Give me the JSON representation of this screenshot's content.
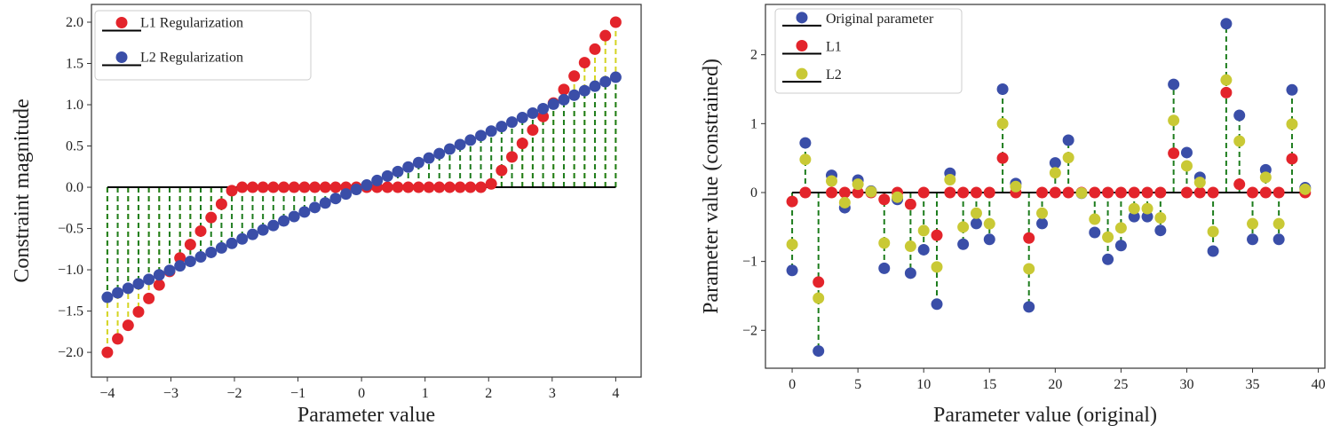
{
  "chart_data": [
    {
      "type": "scatter",
      "xlabel": "Parameter value",
      "ylabel": "Constraint magnitude",
      "xlim": [
        -4.25,
        4.4
      ],
      "ylim": [
        -2.3,
        2.215
      ],
      "xticks": [
        "-4",
        "-3",
        "-2",
        "-1",
        "0",
        "1",
        "2",
        "3",
        "4"
      ],
      "xtick_values": [
        -4,
        -3,
        -2,
        -1,
        0,
        1,
        2,
        3,
        4
      ],
      "yticks": [
        "-2.0",
        "-1.5",
        "-1.0",
        "-0.5",
        "0.0",
        "0.5",
        "1.0",
        "1.5",
        "2.0"
      ],
      "ytick_values": [
        -2,
        -1.5,
        -1,
        -0.5,
        0,
        0.5,
        1,
        1.5,
        2
      ],
      "legend_position": "top-left",
      "grid": false,
      "x": [
        -4.0,
        -3.837,
        -3.673,
        -3.51,
        -3.347,
        -3.184,
        -3.02,
        -2.857,
        -2.694,
        -2.531,
        -2.367,
        -2.204,
        -2.041,
        -1.878,
        -1.714,
        -1.551,
        -1.388,
        -1.224,
        -1.061,
        -0.898,
        -0.735,
        -0.571,
        -0.408,
        -0.245,
        -0.082,
        0.082,
        0.245,
        0.408,
        0.571,
        0.735,
        0.898,
        1.061,
        1.224,
        1.388,
        1.551,
        1.714,
        1.878,
        2.041,
        2.204,
        2.367,
        2.531,
        2.694,
        2.857,
        3.02,
        3.184,
        3.347,
        3.51,
        3.673,
        3.837,
        4.0
      ],
      "series": [
        {
          "name": "L1 Regularization",
          "color": "#e3242b",
          "stem_color": "#d4d422",
          "values": [
            -2.0,
            -1.837,
            -1.673,
            -1.51,
            -1.347,
            -1.184,
            -1.02,
            -0.857,
            -0.694,
            -0.531,
            -0.367,
            -0.204,
            -0.041,
            0,
            0,
            0,
            0,
            0,
            0,
            0,
            0,
            0,
            0,
            0,
            0,
            0,
            0,
            0,
            0,
            0,
            0,
            0,
            0,
            0,
            0,
            0,
            0,
            0.041,
            0.204,
            0.367,
            0.531,
            0.694,
            0.857,
            1.02,
            1.184,
            1.347,
            1.51,
            1.673,
            1.837,
            2.0
          ]
        },
        {
          "name": "L2 Regularization",
          "color": "#3a4ea8",
          "stem_color": "#1e7d1e",
          "values": [
            -1.333,
            -1.279,
            -1.224,
            -1.17,
            -1.116,
            -1.061,
            -1.007,
            -0.952,
            -0.898,
            -0.844,
            -0.789,
            -0.735,
            -0.68,
            -0.626,
            -0.571,
            -0.517,
            -0.463,
            -0.408,
            -0.354,
            -0.299,
            -0.245,
            -0.19,
            -0.136,
            -0.082,
            -0.027,
            0.027,
            0.082,
            0.136,
            0.19,
            0.245,
            0.299,
            0.354,
            0.408,
            0.463,
            0.517,
            0.571,
            0.626,
            0.68,
            0.735,
            0.789,
            0.844,
            0.898,
            0.952,
            1.007,
            1.061,
            1.116,
            1.17,
            1.224,
            1.279,
            1.333
          ]
        }
      ],
      "baseline_color": "#000000"
    },
    {
      "type": "scatter",
      "xlabel": "Parameter value (original)",
      "ylabel": "Parameter value (constrained)",
      "xlim": [
        -2.03,
        40.5
      ],
      "ylim": [
        -2.55,
        2.73
      ],
      "xticks": [
        "0",
        "5",
        "10",
        "15",
        "20",
        "25",
        "30",
        "35",
        "40"
      ],
      "xtick_values": [
        0,
        5,
        10,
        15,
        20,
        25,
        30,
        35,
        40
      ],
      "yticks": [
        "-2",
        "-1",
        "0",
        "1",
        "2"
      ],
      "ytick_values": [
        -2,
        -1,
        0,
        1,
        2
      ],
      "legend_position": "top-left",
      "grid": false,
      "x": [
        0,
        1,
        2,
        3,
        4,
        5,
        6,
        7,
        8,
        9,
        10,
        11,
        12,
        13,
        14,
        15,
        16,
        17,
        18,
        19,
        20,
        21,
        22,
        23,
        24,
        25,
        26,
        27,
        28,
        29,
        30,
        31,
        32,
        33,
        34,
        35,
        36,
        37,
        38,
        39
      ],
      "series": [
        {
          "name": "Original parameter",
          "color": "#3a4ea8",
          "stem_color": "#1e7d1e",
          "values": [
            -1.13,
            0.72,
            -2.3,
            0.25,
            -0.22,
            0.18,
            0.02,
            -1.1,
            -0.1,
            -1.17,
            -0.83,
            -1.62,
            0.28,
            -0.75,
            -0.45,
            -0.68,
            1.5,
            0.13,
            -1.66,
            -0.45,
            0.43,
            0.76,
            -0.01,
            -0.58,
            -0.97,
            -0.77,
            -0.35,
            -0.35,
            -0.55,
            1.57,
            0.58,
            0.22,
            -0.85,
            2.45,
            1.12,
            -0.68,
            0.33,
            -0.68,
            1.49,
            0.07
          ]
        },
        {
          "name": "L1",
          "color": "#e3242b",
          "values": [
            -0.13,
            0,
            -1.3,
            0,
            0,
            0,
            0,
            -0.1,
            0,
            -0.17,
            0,
            -0.62,
            0,
            0,
            0,
            0,
            0.5,
            0,
            -0.66,
            0,
            0,
            0,
            0,
            0,
            0,
            0,
            0,
            0,
            0,
            0.57,
            0,
            0,
            0,
            1.45,
            0.12,
            0,
            0,
            0,
            0.49,
            0
          ]
        },
        {
          "name": "L2",
          "color": "#c9c935",
          "values": [
            -0.753,
            0.48,
            -1.533,
            0.167,
            -0.147,
            0.12,
            0.013,
            -0.733,
            -0.067,
            -0.78,
            -0.553,
            -1.08,
            0.187,
            -0.5,
            -0.3,
            -0.453,
            1.0,
            0.087,
            -1.107,
            -0.3,
            0.287,
            0.507,
            -0.007,
            -0.387,
            -0.647,
            -0.513,
            -0.233,
            -0.233,
            -0.367,
            1.047,
            0.387,
            0.147,
            -0.567,
            1.633,
            0.747,
            -0.453,
            0.22,
            -0.453,
            0.993,
            0.047
          ]
        }
      ],
      "baseline_color": "#000000"
    }
  ]
}
